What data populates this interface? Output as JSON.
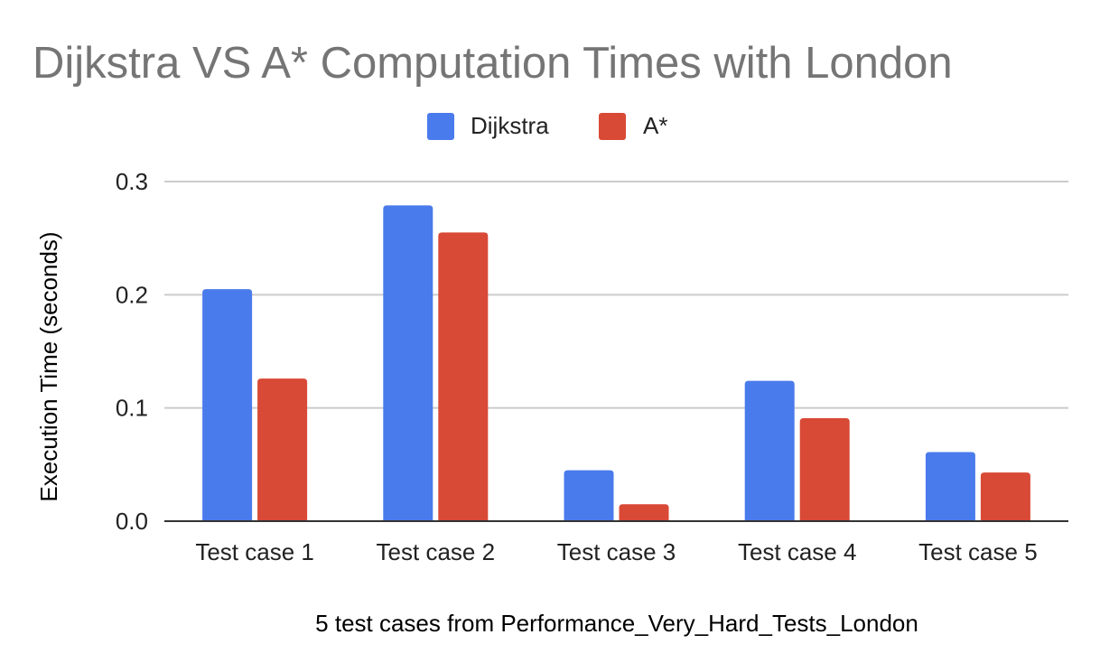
{
  "chart_data": {
    "type": "bar",
    "title": "Dijkstra VS A* Computation Times with London",
    "xlabel": "5 test cases from Performance_Very_Hard_Tests_London",
    "ylabel": "Execution Time (seconds)",
    "categories": [
      "Test case 1",
      "Test case 2",
      "Test case 3",
      "Test case 4",
      "Test case 5"
    ],
    "series": [
      {
        "name": "Dijkstra",
        "color": "#4a7bec",
        "values": [
          0.205,
          0.279,
          0.045,
          0.124,
          0.061
        ]
      },
      {
        "name": "A*",
        "color": "#d84936",
        "values": [
          0.126,
          0.255,
          0.015,
          0.091,
          0.043
        ]
      }
    ],
    "yticks": [
      0.0,
      0.1,
      0.2,
      0.3
    ],
    "ytick_labels": [
      "0.0",
      "0.1",
      "0.2",
      "0.3"
    ],
    "ylim": [
      0,
      0.3
    ],
    "grid": true,
    "legend": "top-center"
  }
}
